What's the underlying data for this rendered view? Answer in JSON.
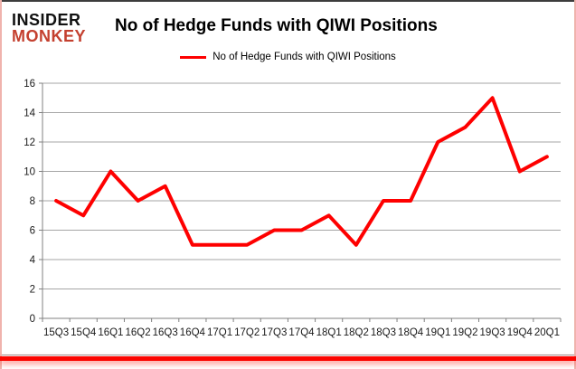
{
  "logo": {
    "line1": "INSIDER",
    "line2": "MONKEY",
    "line1_color": "#111111",
    "line2_color": "#c4402f"
  },
  "header": {
    "title": "No of Hedge Funds with QIWI Positions"
  },
  "legend": {
    "label": "No of Hedge Funds with QIWI Positions",
    "swatch_color": "#fe0000"
  },
  "chart_data": {
    "type": "line",
    "title": "No of Hedge Funds with QIWI Positions",
    "categories": [
      "15Q3",
      "15Q4",
      "16Q1",
      "16Q2",
      "16Q3",
      "16Q4",
      "17Q1",
      "17Q2",
      "17Q3",
      "17Q4",
      "18Q1",
      "18Q2",
      "18Q3",
      "18Q4",
      "19Q1",
      "19Q2",
      "19Q3",
      "19Q4",
      "20Q1"
    ],
    "series": [
      {
        "name": "No of Hedge Funds with QIWI Positions",
        "values": [
          8,
          7,
          10,
          8,
          9,
          5,
          5,
          5,
          6,
          6,
          7,
          5,
          8,
          8,
          12,
          13,
          15,
          10,
          11
        ]
      }
    ],
    "ylim": [
      0,
      16
    ],
    "ytick_step": 2,
    "xlabel": "",
    "ylabel": "",
    "grid": "on",
    "legend_position": "top",
    "line_color": "#fe0000",
    "grid_color": "#a6a6a6",
    "axis_color": "#808080",
    "tick_label_color": "#1a1a1a"
  }
}
